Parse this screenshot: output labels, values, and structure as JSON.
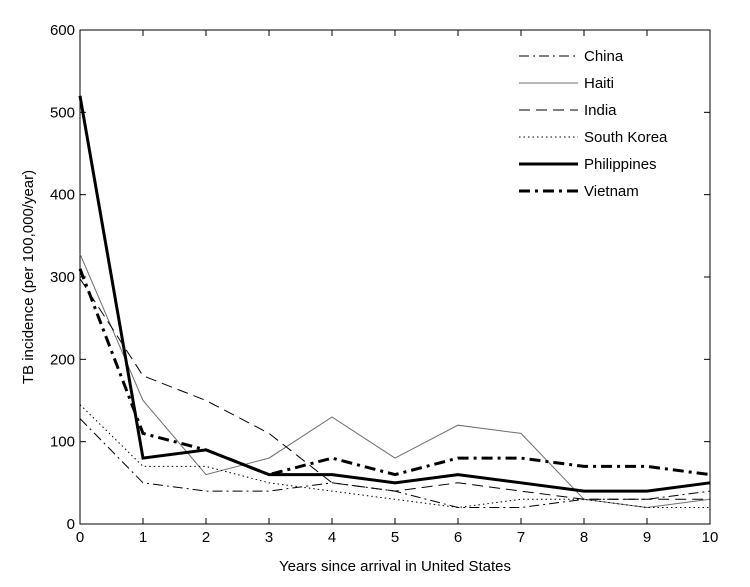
{
  "chart_data": {
    "type": "line",
    "title": "",
    "xlabel": "Years since arrival in United States",
    "ylabel": "TB incidence (per 100,000/year)",
    "xlim": [
      0,
      10
    ],
    "ylim": [
      0,
      600
    ],
    "x_ticks": [
      0,
      1,
      2,
      3,
      4,
      5,
      6,
      7,
      8,
      9,
      10
    ],
    "y_ticks": [
      0,
      100,
      200,
      300,
      400,
      500,
      600
    ],
    "grid": false,
    "legend_position": "top-right",
    "x": [
      0,
      1,
      2,
      3,
      4,
      5,
      6,
      7,
      8,
      9,
      10
    ],
    "series": [
      {
        "name": "China",
        "style": "dash-dot-thin",
        "values": [
          128,
          50,
          40,
          40,
          50,
          40,
          20,
          20,
          30,
          30,
          40
        ]
      },
      {
        "name": "Haiti",
        "style": "solid-thin",
        "values": [
          328,
          150,
          60,
          80,
          130,
          80,
          120,
          110,
          30,
          20,
          30
        ]
      },
      {
        "name": "India",
        "style": "dashed-thin",
        "values": [
          298,
          180,
          150,
          110,
          50,
          40,
          50,
          40,
          30,
          30,
          30
        ]
      },
      {
        "name": "South Korea",
        "style": "dotted-thin",
        "values": [
          145,
          70,
          70,
          50,
          40,
          30,
          20,
          30,
          30,
          20,
          20
        ]
      },
      {
        "name": "Philippines",
        "style": "solid-thick",
        "values": [
          520,
          80,
          90,
          60,
          60,
          50,
          60,
          50,
          40,
          40,
          50
        ]
      },
      {
        "name": "Vietnam",
        "style": "dash-dot-thick",
        "values": [
          310,
          110,
          90,
          60,
          80,
          60,
          80,
          80,
          70,
          70,
          60
        ]
      }
    ]
  }
}
